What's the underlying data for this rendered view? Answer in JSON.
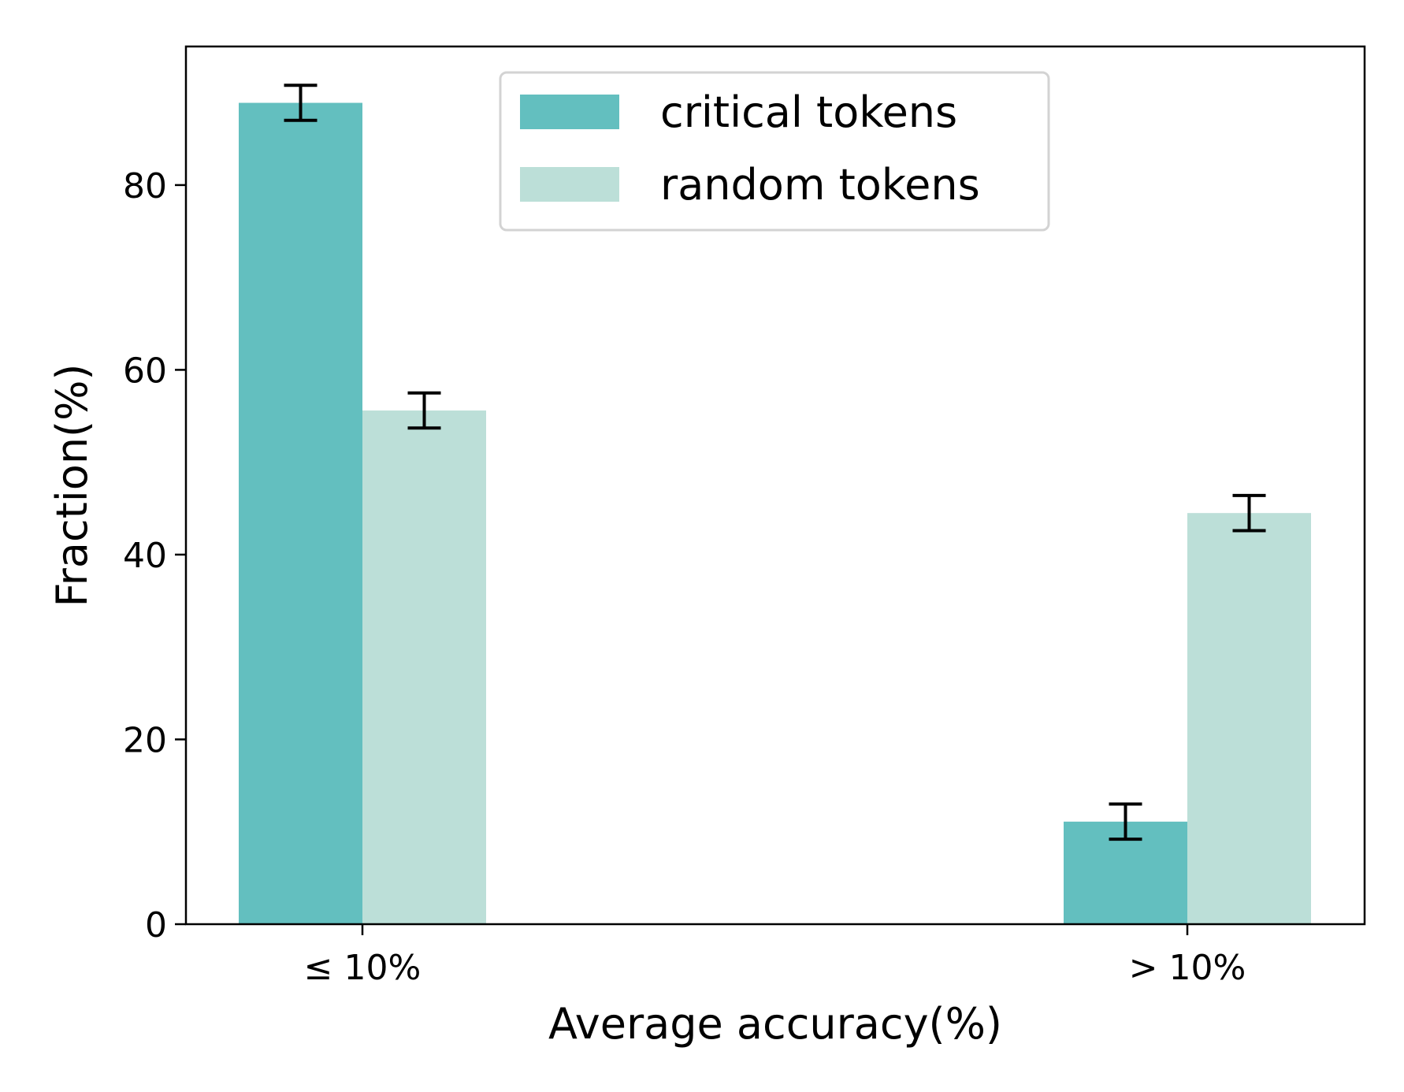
{
  "chart_data": {
    "type": "bar",
    "title": "",
    "xlabel": "Average accuracy(%)",
    "ylabel": "Fraction(%)",
    "categories": [
      "≤ 10%",
      "> 10%"
    ],
    "ylim": [
      0,
      95
    ],
    "yticks": [
      0,
      20,
      40,
      60,
      80
    ],
    "legend_position": "top-center",
    "grid": false,
    "series": [
      {
        "name": "critical tokens",
        "color": "#63bfbf",
        "values": [
          88.9,
          11.1
        ],
        "errors": [
          1.9,
          1.9
        ]
      },
      {
        "name": "random tokens",
        "color": "#bcdfd8",
        "values": [
          55.6,
          44.5
        ],
        "errors": [
          1.9,
          1.9
        ]
      }
    ]
  }
}
